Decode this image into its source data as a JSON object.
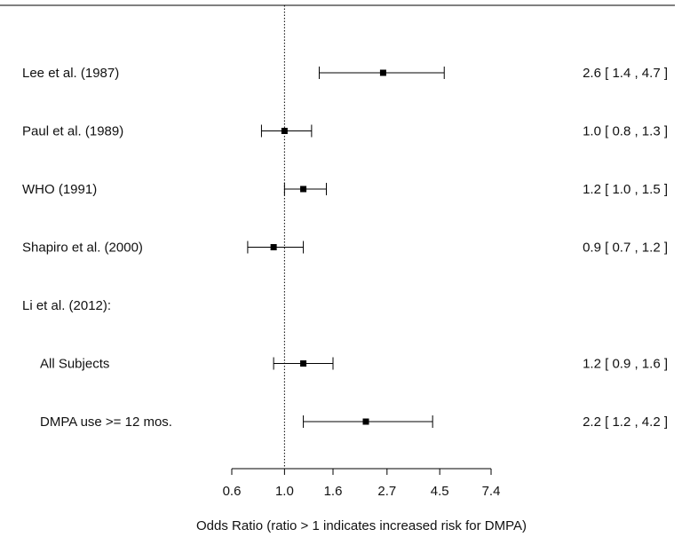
{
  "chart_data": {
    "type": "forest",
    "xlabel": "Odds Ratio (ratio > 1 indicates increased risk for DMPA)",
    "x_scale": "log",
    "xlim": [
      0.6,
      7.4
    ],
    "reference_line": 1.0,
    "ticks": [
      {
        "value": 0.6,
        "label": "0.6"
      },
      {
        "value": 1.0,
        "label": "1.0"
      },
      {
        "value": 1.6,
        "label": "1.6"
      },
      {
        "value": 2.7,
        "label": "2.7"
      },
      {
        "value": 4.5,
        "label": "4.5"
      },
      {
        "value": 7.4,
        "label": "7.4"
      }
    ],
    "rows": [
      {
        "label": "Lee et al. (1987)",
        "or": 2.6,
        "lower": 1.4,
        "upper": 4.7,
        "ci_text": "2.6 [ 1.4 , 4.7 ]",
        "indent": false
      },
      {
        "label": "Paul et al. (1989)",
        "or": 1.0,
        "lower": 0.8,
        "upper": 1.3,
        "ci_text": "1.0 [ 0.8 , 1.3 ]",
        "indent": false
      },
      {
        "label": "WHO (1991)",
        "or": 1.2,
        "lower": 1.0,
        "upper": 1.5,
        "ci_text": "1.2 [ 1.0 , 1.5 ]",
        "indent": false
      },
      {
        "label": "Shapiro et al. (2000)",
        "or": 0.9,
        "lower": 0.7,
        "upper": 1.2,
        "ci_text": "0.9 [ 0.7 , 1.2 ]",
        "indent": false
      },
      {
        "label": "Li et al. (2012):",
        "or": null,
        "lower": null,
        "upper": null,
        "ci_text": "",
        "indent": false
      },
      {
        "label": "All Subjects",
        "or": 1.2,
        "lower": 0.9,
        "upper": 1.6,
        "ci_text": "1.2 [ 0.9 , 1.6 ]",
        "indent": true
      },
      {
        "label": "DMPA use >= 12 mos.",
        "or": 2.2,
        "lower": 1.2,
        "upper": 4.2,
        "ci_text": "2.2 [ 1.2 , 4.2 ]",
        "indent": true
      }
    ]
  }
}
